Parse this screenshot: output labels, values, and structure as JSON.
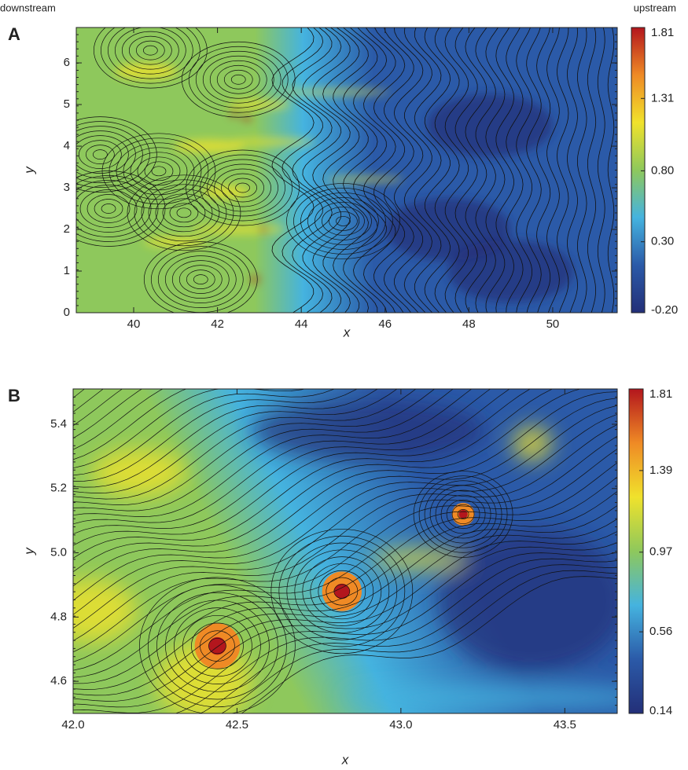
{
  "chart_data": [
    {
      "type": "heatmap",
      "panel": "A",
      "xlabel": "x",
      "ylabel": "y",
      "annotations": [
        "downstream",
        "upstream"
      ],
      "xlim": [
        38.63,
        51.54
      ],
      "xticks": [
        40,
        42,
        44,
        46,
        48,
        50
      ],
      "ylim": [
        0,
        6.85
      ],
      "yticks": [
        0,
        1,
        2,
        3,
        4,
        5,
        6
      ],
      "clim": [
        -0.2,
        1.81
      ],
      "cticks": [
        {
          "value": -0.2,
          "label": "-0.20"
        },
        {
          "value": 0.3,
          "label": "0.30"
        },
        {
          "value": 0.8,
          "label": "0.80"
        },
        1.31,
        1.81
      ],
      "colormap": [
        "#232f78",
        "#2b5aa8",
        "#45b3df",
        "#8ec85c",
        "#f0e22c",
        "#ef8a25",
        "#b3161d"
      ]
    },
    {
      "type": "heatmap",
      "panel": "B",
      "xlabel": "x",
      "ylabel": "y",
      "xlim": [
        42.0,
        43.66
      ],
      "xticks": [
        {
          "value": 42.0,
          "label": "42.0"
        },
        42.5,
        {
          "value": 43.0,
          "label": "43.0"
        },
        43.5
      ],
      "ylim": [
        4.5,
        5.51
      ],
      "yticks": [
        4.6,
        4.8,
        {
          "value": 5.0,
          "label": "5.0"
        },
        5.2,
        5.4
      ],
      "clim": [
        0.14,
        1.81
      ],
      "cticks": [
        0.14,
        0.56,
        0.97,
        1.39,
        1.81
      ],
      "colormap": [
        "#232f78",
        "#2b5aa8",
        "#45b3df",
        "#8ec85c",
        "#f0e22c",
        "#ef8a25",
        "#b3161d"
      ]
    }
  ]
}
